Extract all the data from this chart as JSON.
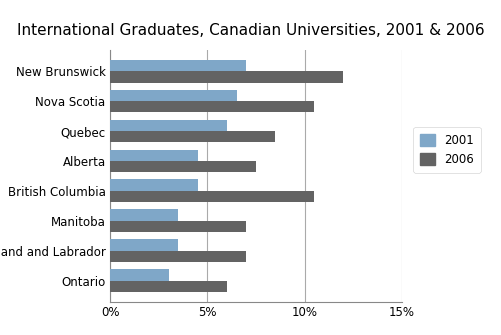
{
  "title": "International Graduates, Canadian Universities, 2001 & 2006",
  "provinces": [
    "New Brunswick",
    "Nova Scotia",
    "Quebec",
    "Alberta",
    "British Columbia",
    "Manitoba",
    "Newfoundland and Labrador",
    "Ontario"
  ],
  "values_2001": [
    7.0,
    6.5,
    6.0,
    4.5,
    4.5,
    3.5,
    3.5,
    3.0
  ],
  "values_2006": [
    12.0,
    10.5,
    8.5,
    7.5,
    10.5,
    7.0,
    7.0,
    6.0
  ],
  "color_2001": "#7fa7c8",
  "color_2006": "#636363",
  "xlim": [
    0,
    15
  ],
  "xtick_vals": [
    0,
    5,
    10,
    15
  ],
  "xtick_labels": [
    "0%",
    "5%",
    "10%",
    "15%"
  ],
  "legend_labels": [
    "2001",
    "2006"
  ],
  "background_color": "#ffffff",
  "title_fontsize": 11,
  "tick_fontsize": 8.5,
  "bar_height": 0.38,
  "grid_color": "#aaaaaa",
  "grid_linewidth": 0.8
}
